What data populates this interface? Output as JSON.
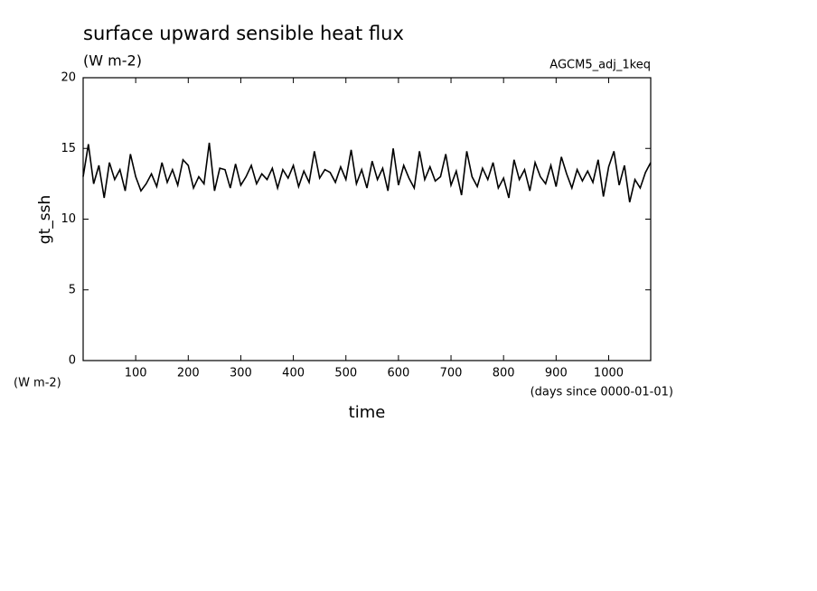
{
  "chart_data": {
    "type": "line",
    "title": "surface upward sensible heat flux",
    "subtitle": "(W m-2)",
    "annotation": "AGCM5_adj_1keq",
    "y_label": "gt_ssh",
    "y_unit": "(W m-2)",
    "x_unit": "(days since 0000-01-01)",
    "x_label": "time",
    "xlim": [
      0,
      1080
    ],
    "ylim": [
      0,
      20
    ],
    "xticks": [
      100,
      200,
      300,
      400,
      500,
      600,
      700,
      800,
      900,
      1000
    ],
    "yticks": [
      0,
      5,
      10,
      15,
      20
    ],
    "x": [
      0,
      10,
      20,
      30,
      40,
      50,
      60,
      70,
      80,
      90,
      100,
      110,
      120,
      130,
      140,
      150,
      160,
      170,
      180,
      190,
      200,
      210,
      220,
      230,
      240,
      250,
      260,
      270,
      280,
      290,
      300,
      310,
      320,
      330,
      340,
      350,
      360,
      370,
      380,
      390,
      400,
      410,
      420,
      430,
      440,
      450,
      460,
      470,
      480,
      490,
      500,
      510,
      520,
      530,
      540,
      550,
      560,
      570,
      580,
      590,
      600,
      610,
      620,
      630,
      640,
      650,
      660,
      670,
      680,
      690,
      700,
      710,
      720,
      730,
      740,
      750,
      760,
      770,
      780,
      790,
      800,
      810,
      820,
      830,
      840,
      850,
      860,
      870,
      880,
      890,
      900,
      910,
      920,
      930,
      940,
      950,
      960,
      970,
      980,
      990,
      1000,
      1010,
      1020,
      1030,
      1040,
      1050,
      1060,
      1070,
      1080
    ],
    "series": [
      {
        "name": "gt_ssh",
        "color": "#000000",
        "values": [
          13.0,
          15.3,
          12.5,
          13.8,
          11.5,
          14.0,
          12.8,
          13.5,
          12.0,
          14.6,
          13.0,
          12.0,
          12.5,
          13.2,
          12.3,
          14.0,
          12.6,
          13.5,
          12.4,
          14.2,
          13.8,
          12.2,
          13.0,
          12.5,
          15.4,
          12.0,
          13.6,
          13.5,
          12.2,
          13.9,
          12.4,
          13.0,
          13.8,
          12.5,
          13.2,
          12.8,
          13.6,
          12.2,
          13.5,
          12.9,
          13.8,
          12.3,
          13.4,
          12.6,
          14.8,
          12.9,
          13.5,
          13.3,
          12.6,
          13.7,
          12.8,
          14.9,
          12.5,
          13.5,
          12.2,
          14.1,
          12.8,
          13.6,
          12.0,
          15.0,
          12.4,
          13.8,
          12.9,
          12.2,
          14.8,
          12.8,
          13.7,
          12.7,
          13.0,
          14.6,
          12.4,
          13.4,
          11.7,
          14.8,
          13.0,
          12.3,
          13.6,
          12.8,
          14.0,
          12.2,
          12.9,
          11.5,
          14.2,
          12.8,
          13.5,
          12.0,
          14.0,
          13.0,
          12.5,
          13.8,
          12.3,
          14.4,
          13.2,
          12.2,
          13.5,
          12.7,
          13.4,
          12.6,
          14.2,
          11.6,
          13.7,
          14.8,
          12.4,
          13.8,
          11.2,
          12.8,
          12.2,
          13.3,
          14.0
        ]
      }
    ]
  }
}
